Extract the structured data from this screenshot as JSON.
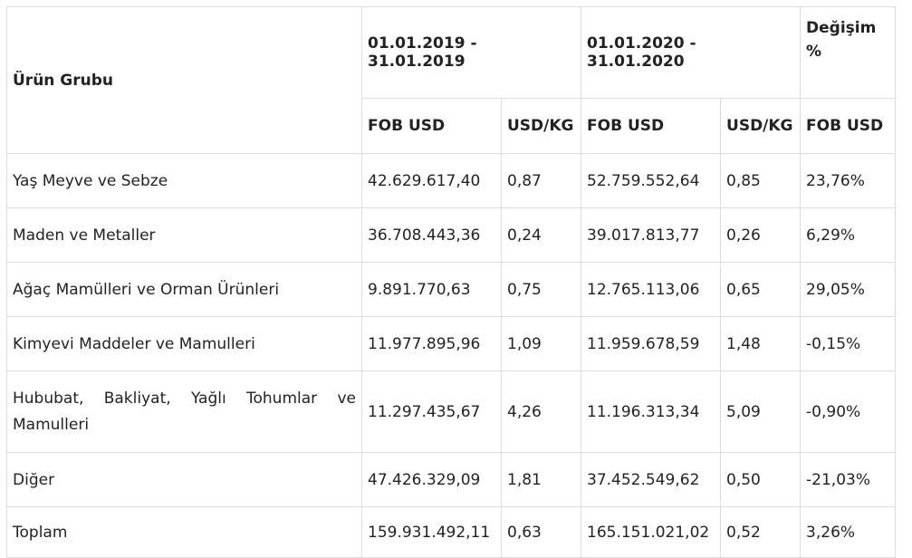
{
  "header": {
    "product_group": "Ürün Grubu",
    "period_2019": "01.01.2019 - 31.01.2019",
    "period_2020": "01.01.2020 - 31.01.2020",
    "change": "Değişim %",
    "fob_usd_2019": "FOB USD",
    "usd_kg_2019": "USD/KG",
    "fob_usd_2020": "FOB USD",
    "usd_kg_2020": "USD/KG",
    "change_fob_usd": "FOB USD"
  },
  "rows": [
    {
      "name": "Yaş Meyve ve Sebze",
      "fob_2019": "42.629.617,40",
      "kg_2019": "0,87",
      "fob_2020": "52.759.552,64",
      "kg_2020": "0,85",
      "change": "23,76%"
    },
    {
      "name": "Maden ve Metaller",
      "fob_2019": "36.708.443,36",
      "kg_2019": "0,24",
      "fob_2020": "39.017.813,77",
      "kg_2020": "0,26",
      "change": "6,29%"
    },
    {
      "name": "Ağaç Mamülleri ve Orman Ürünleri",
      "fob_2019": "9.891.770,63",
      "kg_2019": "0,75",
      "fob_2020": "12.765.113,06",
      "kg_2020": "0,65",
      "change": "29,05%"
    },
    {
      "name": "Kimyevi Maddeler ve Mamulleri",
      "fob_2019": "11.977.895,96",
      "kg_2019": "1,09",
      "fob_2020": "11.959.678,59",
      "kg_2020": "1,48",
      "change": "-0,15%"
    },
    {
      "name": "Hububat, Bakliyat, Yağlı Tohumlar ve Mamulleri",
      "fob_2019": "11.297.435,67",
      "kg_2019": "4,26",
      "fob_2020": "11.196.313,34",
      "kg_2020": "5,09",
      "change": "-0,90%"
    },
    {
      "name": "Diğer",
      "fob_2019": "47.426.329,09",
      "kg_2019": "1,81",
      "fob_2020": "37.452.549,62",
      "kg_2020": "0,50",
      "change": "-21,03%"
    }
  ],
  "total": {
    "name": "Toplam",
    "fob_2019": "159.931.492,11",
    "kg_2019": "0,63",
    "fob_2020": "165.151.021,02",
    "kg_2020": "0,52",
    "change": "3,26%"
  }
}
